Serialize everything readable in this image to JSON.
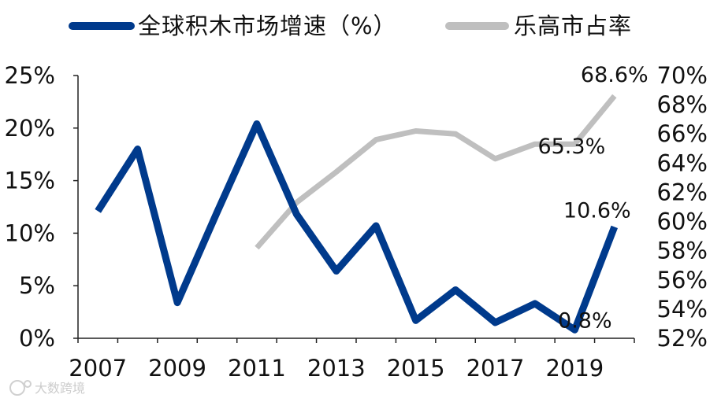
{
  "chart_data": {
    "type": "line",
    "x": [
      2007,
      2008,
      2009,
      2010,
      2011,
      2012,
      2013,
      2014,
      2015,
      2016,
      2017,
      2018,
      2019,
      2020
    ],
    "x_tick_labels": [
      "2007",
      "2009",
      "2011",
      "2013",
      "2015",
      "2017",
      "2019"
    ],
    "series": [
      {
        "name": "全球积木市场增速（%）",
        "axis": "left",
        "color": "#003A8C",
        "values": [
          12.1,
          18.0,
          3.4,
          12.0,
          20.4,
          11.8,
          6.4,
          10.7,
          1.7,
          4.6,
          1.5,
          3.3,
          0.8,
          10.6
        ]
      },
      {
        "name": "乐高市占率",
        "axis": "right",
        "color": "#BFBFBF",
        "values": [
          null,
          null,
          null,
          null,
          58.2,
          61.3,
          63.4,
          65.6,
          66.2,
          66.0,
          64.3,
          65.3,
          65.3,
          68.6
        ]
      }
    ],
    "y_left": {
      "ylim": [
        0,
        25
      ],
      "ticks": [
        0,
        5,
        10,
        15,
        20,
        25
      ],
      "tick_labels": [
        "0%",
        "5%",
        "10%",
        "15%",
        "20%",
        "25%"
      ]
    },
    "y_right": {
      "ylim": [
        52,
        70
      ],
      "ticks": [
        52,
        54,
        56,
        58,
        60,
        62,
        64,
        66,
        68,
        70
      ],
      "tick_labels": [
        "52%",
        "54%",
        "56%",
        "58%",
        "60%",
        "62%",
        "64%",
        "66%",
        "68%",
        "70%"
      ]
    },
    "data_labels": [
      {
        "text": "68.6%",
        "series": 1,
        "index": 13
      },
      {
        "text": "65.3%",
        "series": 1,
        "index": 12
      },
      {
        "text": "10.6%",
        "series": 0,
        "index": 13
      },
      {
        "text": "0.8%",
        "series": 0,
        "index": 12
      }
    ],
    "legend_placement": "top",
    "grid": false,
    "xlabel": "",
    "ylabel": ""
  },
  "watermark": "大数跨境"
}
